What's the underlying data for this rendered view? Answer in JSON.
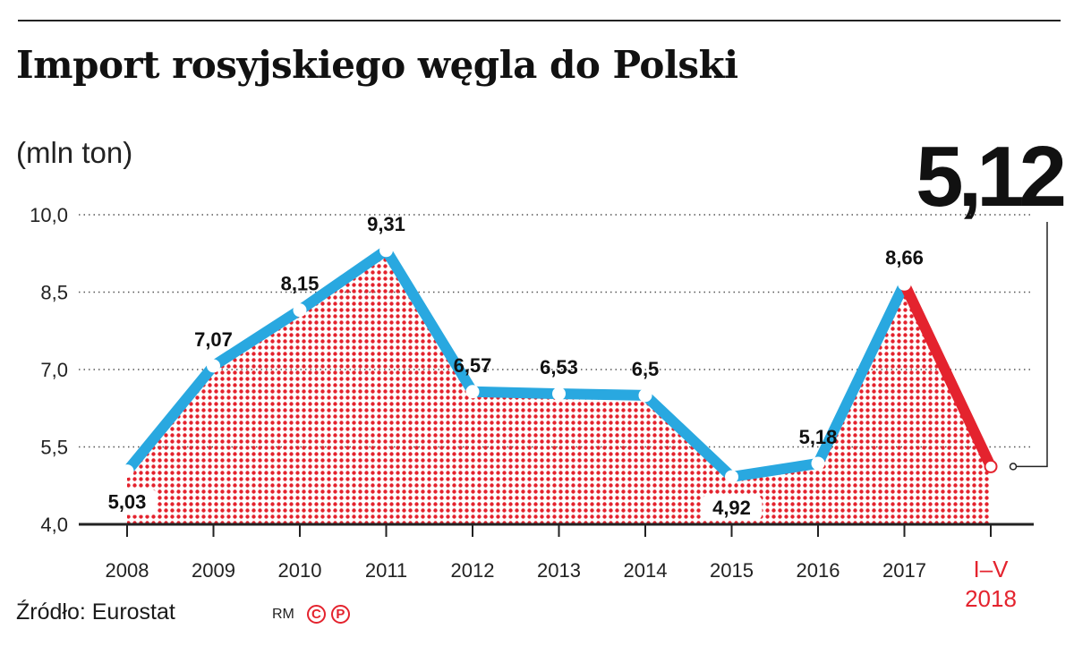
{
  "header": {
    "title": "Import rosyjskiego węgla do Polski",
    "unit": "(mln ton)"
  },
  "highlight": {
    "value": "5,12"
  },
  "footer": {
    "source": "Źródło: Eurostat",
    "credit": "RM",
    "copyright_symbols": [
      "C",
      "P"
    ]
  },
  "colors": {
    "line": "#29a8e0",
    "highlight": "#e4232e",
    "area_dots": "#e4232e",
    "text": "#111111"
  },
  "chart_data": {
    "type": "line",
    "title": "Import rosyjskiego węgla do Polski",
    "ylabel": "(mln ton)",
    "ylim": [
      4.0,
      10.0
    ],
    "yticks": [
      "4,0",
      "5,5",
      "7,0",
      "8,5",
      "10,0"
    ],
    "ytick_values": [
      4.0,
      5.5,
      7.0,
      8.5,
      10.0
    ],
    "grid": "horizontal dotted",
    "categories": [
      "2008",
      "2009",
      "2010",
      "2011",
      "2012",
      "2013",
      "2014",
      "2015",
      "2016",
      "2017",
      "I–V 2018"
    ],
    "category_lines": [
      [
        "2008"
      ],
      [
        "2009"
      ],
      [
        "2010"
      ],
      [
        "2011"
      ],
      [
        "2012"
      ],
      [
        "2013"
      ],
      [
        "2014"
      ],
      [
        "2015"
      ],
      [
        "2016"
      ],
      [
        "2017"
      ],
      [
        "I–V",
        "2018"
      ]
    ],
    "values": [
      5.03,
      7.07,
      8.15,
      9.31,
      6.57,
      6.53,
      6.5,
      4.92,
      5.18,
      8.66,
      5.12
    ],
    "labels": [
      "5,03",
      "7,07",
      "8,15",
      "9,31",
      "6,57",
      "6,53",
      "6,5",
      "4,92",
      "5,18",
      "8,66",
      ""
    ],
    "highlight_segment": "2017 → I–V 2018",
    "area_fill": "dotted red pattern"
  }
}
